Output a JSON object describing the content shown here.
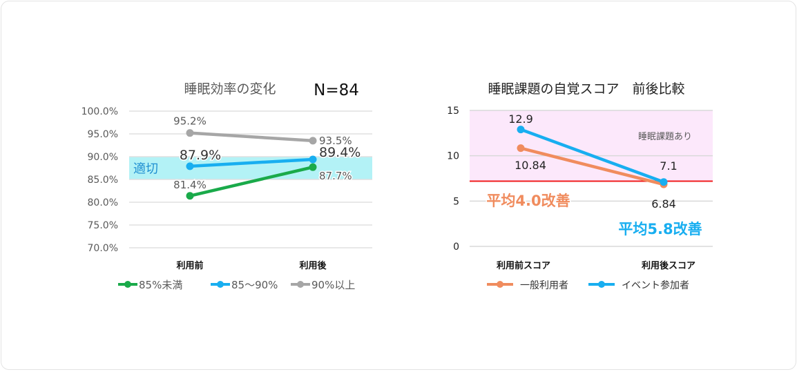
{
  "chart_data": [
    {
      "type": "line",
      "title": "睡眠効率の変化",
      "annotation_n": "N=84",
      "categories": [
        "利用前",
        "利用後"
      ],
      "ylim": [
        0.7,
        1.0
      ],
      "yticks": [
        {
          "value": 1.0,
          "label": "100.0%"
        },
        {
          "value": 0.95,
          "label": "95.0%"
        },
        {
          "value": 0.9,
          "label": "90.0%"
        },
        {
          "value": 0.85,
          "label": "85.0%"
        },
        {
          "value": 0.8,
          "label": "80.0%"
        },
        {
          "value": 0.75,
          "label": "75.0%"
        },
        {
          "value": 0.7,
          "label": "70.0%"
        }
      ],
      "grid": true,
      "band": {
        "from": 0.85,
        "to": 0.9,
        "label": "適切",
        "color": "#b3f2f6",
        "label_color": "#1f8fd1"
      },
      "series": [
        {
          "name": "85%未満",
          "color": "#1aaa4a",
          "values": [
            0.814,
            0.877
          ],
          "labels": [
            "81.4%",
            "87.7%"
          ]
        },
        {
          "name": "85～90%",
          "color": "#18aef0",
          "values": [
            0.879,
            0.894
          ],
          "labels": [
            "87.9%",
            "89.4%"
          ]
        },
        {
          "name": "90%以上",
          "color": "#a6a6a6",
          "values": [
            0.952,
            0.935
          ],
          "labels": [
            "95.2%",
            "93.5%"
          ]
        }
      ],
      "legend": "bottom"
    },
    {
      "type": "line",
      "title": "睡眠課題の自覚スコア　前後比較",
      "categories": [
        "利用前スコア",
        "利用後スコア"
      ],
      "ylim": [
        0,
        15
      ],
      "yticks": [
        {
          "value": 15,
          "label": "15"
        },
        {
          "value": 10,
          "label": "10"
        },
        {
          "value": 5,
          "label": "5"
        },
        {
          "value": 0,
          "label": "0"
        }
      ],
      "grid": true,
      "band": {
        "from": 7.2,
        "to": 15,
        "label": "睡眠課題あり",
        "color": "#fce8fb"
      },
      "threshold": {
        "value": 7.2,
        "color": "#f01c1c"
      },
      "series": [
        {
          "name": "一般利用者",
          "color": "#f08c5e",
          "values": [
            10.84,
            6.84
          ],
          "labels": [
            "10.84",
            "6.84"
          ]
        },
        {
          "name": "イベント参加者",
          "color": "#18aef0",
          "values": [
            12.9,
            7.1
          ],
          "labels": [
            "12.9",
            "7.1"
          ]
        }
      ],
      "annotations": [
        {
          "text": "平均4.0改善",
          "color": "#f08c5e"
        },
        {
          "text": "平均5.8改善",
          "color": "#18aef0"
        }
      ],
      "legend": "bottom"
    }
  ]
}
